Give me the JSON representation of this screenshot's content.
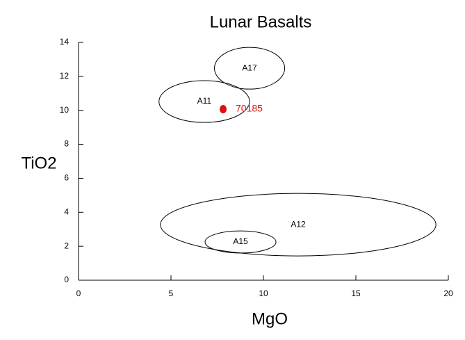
{
  "chart_data": {
    "type": "scatter",
    "title": "Lunar Basalts",
    "xlabel": "MgO",
    "ylabel": "TiO2",
    "xlim": [
      0,
      20
    ],
    "xticks": [
      0,
      5,
      10,
      15,
      20
    ],
    "ylim": [
      0,
      14
    ],
    "yticks": [
      0,
      2,
      4,
      6,
      8,
      10,
      12,
      14
    ],
    "series": [
      {
        "name": "70185",
        "color": "#e01010",
        "x": [
          7.82
        ],
        "y": [
          10.07
        ]
      }
    ],
    "regions": [
      {
        "name": "A17",
        "cx": 9.25,
        "cy": 12.48,
        "rx": 1.9,
        "ry": 1.23
      },
      {
        "name": "A11",
        "cx": 6.8,
        "cy": 10.52,
        "rx": 2.45,
        "ry": 1.23
      },
      {
        "name": "A12",
        "cx": 11.88,
        "cy": 3.27,
        "rx": 7.45,
        "ry": 1.84
      },
      {
        "name": "A15",
        "cx": 8.76,
        "cy": 2.25,
        "rx": 1.92,
        "ry": 0.65
      }
    ]
  }
}
